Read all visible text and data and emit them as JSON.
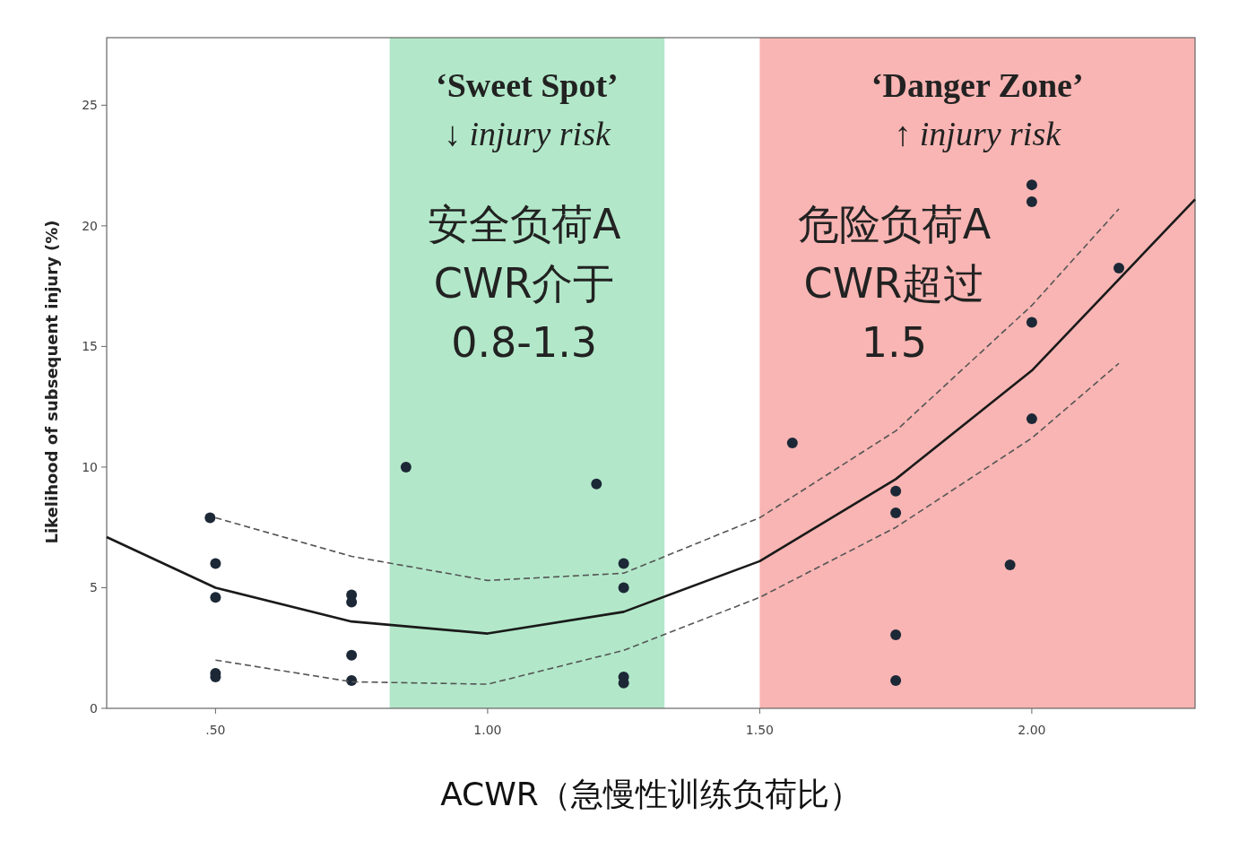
{
  "chart_data": {
    "type": "scatter",
    "xlabel": "ACWR（急慢性训练负荷比）",
    "ylabel": "Likelihood of subsequent injury (%)",
    "xlim": [
      0.3,
      2.3
    ],
    "ylim": [
      0,
      27.8
    ],
    "xticks": [
      {
        "value": 0.5,
        "label": ".50"
      },
      {
        "value": 1.0,
        "label": "1.00"
      },
      {
        "value": 1.5,
        "label": "1.50"
      },
      {
        "value": 2.0,
        "label": "2.00"
      }
    ],
    "yticks": [
      0,
      5,
      10,
      15,
      20,
      25
    ],
    "bands": [
      {
        "axis": "x",
        "from": 0.82,
        "to": 1.325,
        "label": "‘Sweet Spot’",
        "color": "#b2e8c9"
      },
      {
        "axis": "x",
        "from": 1.5,
        "to": 2.3,
        "label": "‘Danger Zone’",
        "color": "#f8b5b3"
      }
    ],
    "annotations": [
      "↓ injury risk",
      "安全负荷ACWR介于0.8-1.3",
      "↑ injury risk",
      "危险负荷ACWR超过1.5"
    ],
    "series": [
      {
        "type": "scatter",
        "color": "#1c2836",
        "marker": "circle",
        "x": [
          0.49,
          0.5,
          0.5,
          0.5,
          0.5,
          0.75,
          0.75,
          0.75,
          0.75,
          0.85,
          1.2,
          1.25,
          1.25,
          1.25,
          1.25,
          1.56,
          1.75,
          1.75,
          1.75,
          1.75,
          1.96,
          2.0,
          2.0,
          2.0,
          2.0,
          2.16
        ],
        "values": [
          7.9,
          6.0,
          4.6,
          1.45,
          1.3,
          4.7,
          4.4,
          2.2,
          1.15,
          10.0,
          9.3,
          6.0,
          5.0,
          1.3,
          1.05,
          11.0,
          9.0,
          8.1,
          3.05,
          1.15,
          5.95,
          21.7,
          21.0,
          16.0,
          12.0,
          18.25
        ]
      },
      {
        "type": "line",
        "color": "#1a1a1a",
        "line_style": "solid",
        "x": [
          0.3,
          0.5,
          0.75,
          1.0,
          1.25,
          1.5,
          1.75,
          2.0,
          2.3
        ],
        "values": [
          7.1,
          5.0,
          3.6,
          3.1,
          4.0,
          6.1,
          9.5,
          14.0,
          21.1
        ]
      },
      {
        "type": "line",
        "color": "#555555",
        "line_style": "dashed",
        "x": [
          0.5,
          0.75,
          1.0,
          1.25,
          1.5,
          1.75,
          2.0,
          2.16
        ],
        "values": [
          7.9,
          6.3,
          5.3,
          5.6,
          7.9,
          11.5,
          16.7,
          20.7
        ]
      },
      {
        "type": "line",
        "color": "#555555",
        "line_style": "dashed",
        "x": [
          0.5,
          0.75,
          1.0,
          1.25,
          1.5,
          1.75,
          2.0,
          2.16
        ],
        "values": [
          2.0,
          1.1,
          1.0,
          2.4,
          4.6,
          7.5,
          11.2,
          14.3
        ]
      }
    ]
  }
}
